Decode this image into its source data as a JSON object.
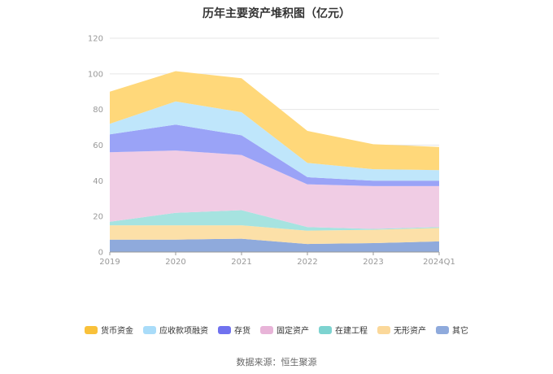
{
  "chart_data": {
    "type": "area",
    "stacked": true,
    "title": "历年主要资产堆积图（亿元）",
    "categories": [
      "2019",
      "2020",
      "2021",
      "2022",
      "2023",
      "2024Q1"
    ],
    "ylim": [
      0,
      120
    ],
    "yticks": [
      "0",
      "20",
      "40",
      "60",
      "80",
      "100",
      "120"
    ],
    "grid": true,
    "legend_position": "bottom",
    "series": [
      {
        "name": "其它",
        "color": "#8faadc",
        "values": [
          7,
          7,
          7.5,
          4.5,
          5,
          6
        ]
      },
      {
        "name": "无形资产",
        "color": "#fce0a8",
        "values": [
          8,
          8,
          7.5,
          7.5,
          7.5,
          7.5
        ]
      },
      {
        "name": "在建工程",
        "color": "#a6e3e0",
        "values": [
          2,
          7,
          8.5,
          2,
          0.5,
          0.5
        ]
      },
      {
        "name": "固定资产",
        "color": "#f0cce4",
        "values": [
          39,
          35,
          31,
          24,
          24,
          23
        ]
      },
      {
        "name": "存货",
        "color": "#9aa3f7",
        "values": [
          10,
          14.5,
          11,
          4,
          3,
          3
        ]
      },
      {
        "name": "应收款项融资",
        "color": "#bfe6fb",
        "values": [
          6,
          13,
          13,
          8,
          6.5,
          6
        ]
      },
      {
        "name": "货币资金",
        "color": "#ffd87a",
        "values": [
          18,
          17,
          19,
          18,
          14,
          13
        ]
      }
    ],
    "legend": [
      {
        "name": "货币资金",
        "color": "#f9c13a"
      },
      {
        "name": "应收款项融资",
        "color": "#a9dcf9"
      },
      {
        "name": "存货",
        "color": "#7072ef"
      },
      {
        "name": "固定资产",
        "color": "#e8b4d8"
      },
      {
        "name": "在建工程",
        "color": "#7dd3d0"
      },
      {
        "name": "无形资产",
        "color": "#fbd89a"
      },
      {
        "name": "其它",
        "color": "#8faadc"
      }
    ]
  },
  "source": "数据来源：恒生聚源"
}
